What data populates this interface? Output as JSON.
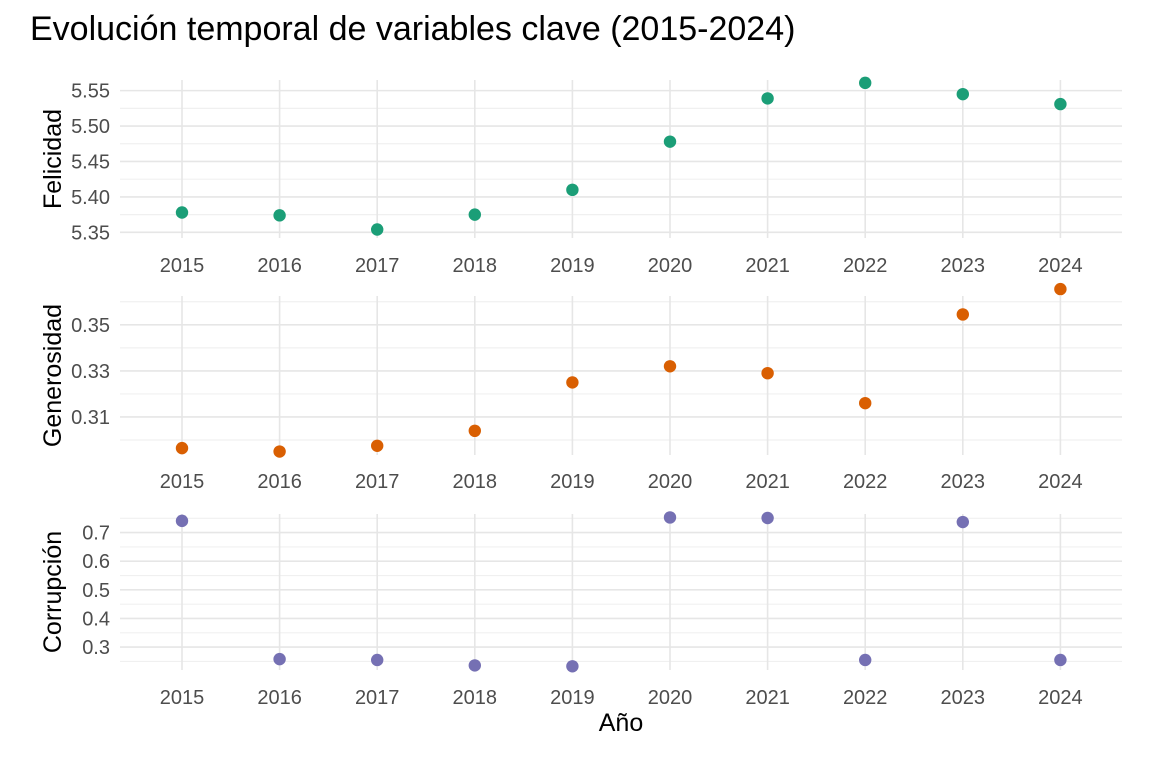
{
  "chart_data": {
    "type": "scatter",
    "title": "Evolución temporal de variables clave (2015-2024)",
    "xlabel": "Año",
    "x": [
      2015,
      2016,
      2017,
      2018,
      2019,
      2020,
      2021,
      2022,
      2023,
      2024
    ],
    "grid": true,
    "legend": "none",
    "panels": [
      {
        "name": "Felicidad",
        "ylabel": "Felicidad",
        "color": "#1B9E77",
        "ylim": [
          5.342,
          5.565
        ],
        "yticks": [
          5.35,
          5.4,
          5.45,
          5.5,
          5.55
        ],
        "ytick_labels": [
          "5.35",
          "5.40",
          "5.45",
          "5.50",
          "5.55"
        ],
        "values": [
          5.378,
          5.374,
          5.354,
          5.375,
          5.41,
          5.478,
          5.539,
          5.561,
          5.545,
          5.531
        ]
      },
      {
        "name": "Generosidad",
        "ylabel": "Generosidad",
        "color": "#D95F02",
        "ylim": [
          0.2935,
          0.3625
        ],
        "yticks": [
          0.31,
          0.33,
          0.35
        ],
        "ytick_labels": [
          "0.31",
          "0.33",
          "0.35"
        ],
        "values": [
          0.2965,
          0.295,
          0.2975,
          0.304,
          0.325,
          0.332,
          0.329,
          0.316,
          0.3545,
          0.3655
        ]
      },
      {
        "name": "Corrupción",
        "ylabel": "Corrupción",
        "color": "#7570B3",
        "ylim": [
          0.22,
          0.765
        ],
        "yticks": [
          0.3,
          0.4,
          0.5,
          0.6,
          0.7
        ],
        "ytick_labels": [
          "0.3",
          "0.4",
          "0.5",
          "0.6",
          "0.7"
        ],
        "values": [
          0.741,
          0.258,
          0.255,
          0.236,
          0.233,
          0.753,
          0.751,
          0.255,
          0.737,
          0.255
        ]
      }
    ]
  }
}
